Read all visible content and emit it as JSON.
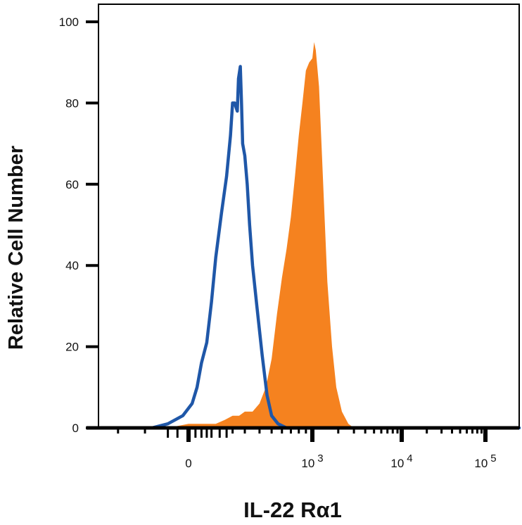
{
  "chart_data": {
    "type": "area",
    "title": "",
    "xlabel": "IL-22 Rα1",
    "ylabel": "Relative Cell Number",
    "x_scale": "biexponential",
    "xlim": [
      -300,
      200000
    ],
    "ylim": [
      0,
      100
    ],
    "y_ticks": [
      0,
      20,
      40,
      60,
      80,
      100
    ],
    "x_ticks": [
      {
        "value": 0,
        "base": "0",
        "exp": ""
      },
      {
        "value": 1000,
        "base": "10",
        "exp": "3"
      },
      {
        "value": 10000,
        "base": "10",
        "exp": "4"
      },
      {
        "value": 100000,
        "base": "10",
        "exp": "5"
      }
    ],
    "grid": false,
    "legend": "none",
    "series": [
      {
        "style": "line",
        "color": "#1f57a8",
        "x": [
          -300,
          -80,
          -40,
          -10,
          10,
          25,
          40,
          60,
          80,
          100,
          130,
          160,
          185,
          200,
          215,
          225,
          235,
          245,
          260,
          270,
          280,
          300,
          315,
          330,
          350,
          380,
          420,
          460,
          500,
          560,
          650,
          800,
          1000,
          3000,
          10000,
          100000,
          200000
        ],
        "y": [
          0,
          0,
          1,
          3,
          6,
          10,
          16,
          21,
          31,
          42,
          53,
          62,
          72,
          80,
          80,
          79,
          78,
          86,
          89,
          80,
          70,
          67,
          60,
          50,
          40,
          30,
          18,
          8,
          3,
          1,
          0,
          0,
          0,
          0,
          0,
          0,
          0
        ]
      },
      {
        "style": "area",
        "color": "#f5821f",
        "x": [
          -300,
          -80,
          -40,
          0,
          50,
          100,
          150,
          200,
          250,
          300,
          350,
          400,
          450,
          500,
          550,
          600,
          650,
          700,
          750,
          800,
          850,
          900,
          950,
          1000,
          1050,
          1100,
          1200,
          1300,
          1400,
          1500,
          1700,
          1900,
          2200,
          2600,
          3000,
          4000,
          10000,
          100000,
          200000
        ],
        "y": [
          0,
          0,
          0,
          1,
          1,
          1,
          2,
          3,
          3,
          4,
          4,
          6,
          10,
          17,
          28,
          37,
          44,
          52,
          62,
          72,
          80,
          88,
          90,
          91,
          95,
          93,
          84,
          67,
          51,
          36,
          20,
          10,
          4,
          1,
          0,
          0,
          0,
          0,
          0
        ]
      }
    ]
  }
}
